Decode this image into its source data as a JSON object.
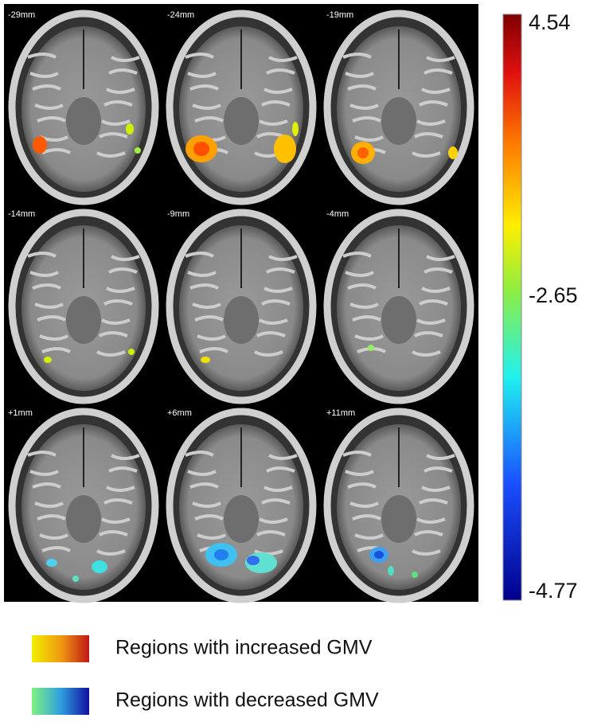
{
  "slices": [
    {
      "label": "-29mm"
    },
    {
      "label": "-24mm"
    },
    {
      "label": "-19mm"
    },
    {
      "label": "-14mm"
    },
    {
      "label": "-9mm"
    },
    {
      "label": "-4mm"
    },
    {
      "label": "+1mm"
    },
    {
      "label": "+6mm"
    },
    {
      "label": "+11mm"
    }
  ],
  "colorbar": {
    "max": 4.54,
    "mid": -2.65,
    "min": -4.77
  },
  "legend": [
    {
      "label": "Regions with increased GMV"
    },
    {
      "label": "Regions with decreased GMV"
    }
  ]
}
